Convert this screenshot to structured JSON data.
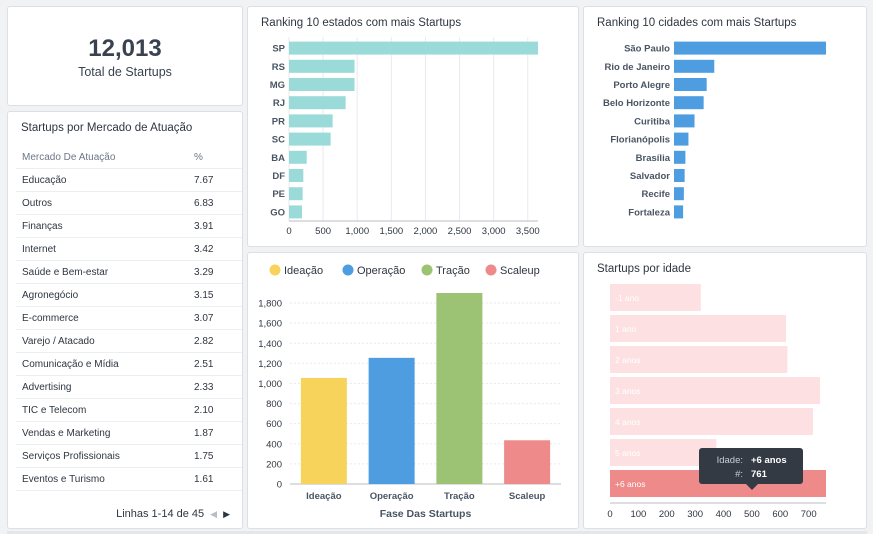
{
  "kpi": {
    "value": "12,013",
    "label": "Total de Startups"
  },
  "mercado": {
    "title": "Startups por Mercado de Atuação",
    "col1": "Mercado De Atuação",
    "col2": "%",
    "rows": [
      {
        "name": "Educação",
        "pct": "7.67"
      },
      {
        "name": "Outros",
        "pct": "6.83"
      },
      {
        "name": "Finanças",
        "pct": "3.91"
      },
      {
        "name": "Internet",
        "pct": "3.42"
      },
      {
        "name": "Saúde e Bem-estar",
        "pct": "3.29"
      },
      {
        "name": "Agronegócio",
        "pct": "3.15"
      },
      {
        "name": "E-commerce",
        "pct": "3.07"
      },
      {
        "name": "Varejo / Atacado",
        "pct": "2.82"
      },
      {
        "name": "Comunicação e Mídia",
        "pct": "2.51"
      },
      {
        "name": "Advertising",
        "pct": "2.33"
      },
      {
        "name": "TIC e Telecom",
        "pct": "2.10"
      },
      {
        "name": "Vendas e Marketing",
        "pct": "1.87"
      },
      {
        "name": "Serviços Profissionais",
        "pct": "1.75"
      },
      {
        "name": "Eventos e Turismo",
        "pct": "1.61"
      }
    ],
    "pager_text": "Linhas 1-14 de 45",
    "prev_icon": "chevron-left-icon",
    "next_icon": "chevron-right-icon"
  },
  "chart_data": [
    {
      "type": "bar",
      "orientation": "horizontal",
      "title": "Ranking 10 estados com mais Startups",
      "categories": [
        "SP",
        "RS",
        "MG",
        "RJ",
        "PR",
        "SC",
        "BA",
        "DF",
        "PE",
        "GO"
      ],
      "values": [
        3650,
        960,
        960,
        830,
        640,
        610,
        260,
        210,
        200,
        190
      ],
      "xlim": [
        0,
        3650
      ],
      "xticks": [
        0,
        500,
        1000,
        1500,
        2000,
        2500,
        3000,
        3500
      ],
      "xtick_labels": [
        "0",
        "500",
        "1,000",
        "1,500",
        "2,000",
        "2,500",
        "3,000",
        "3,500"
      ],
      "color": "#9adbd9",
      "grid": true
    },
    {
      "type": "bar",
      "orientation": "horizontal",
      "title": "Ranking 10 cidades com mais Startups",
      "categories": [
        "São Paulo",
        "Rio de Janeiro",
        "Porto Alegre",
        "Belo Horizonte",
        "Curitiba",
        "Florianópolis",
        "Brasília",
        "Salvador",
        "Recife",
        "Fortaleza"
      ],
      "values": [
        2000,
        530,
        430,
        390,
        270,
        190,
        150,
        140,
        130,
        120
      ],
      "xlim": [
        0,
        2000
      ],
      "color": "#4e9de0",
      "grid": false
    },
    {
      "type": "bar",
      "title": "",
      "categories": [
        "Ideação",
        "Operação",
        "Tração",
        "Scaleup"
      ],
      "series": [
        {
          "name": "Ideação",
          "color": "#f7d35c"
        },
        {
          "name": "Operação",
          "color": "#4e9de0"
        },
        {
          "name": "Tração",
          "color": "#9cc274"
        },
        {
          "name": "Scaleup",
          "color": "#ee8a89"
        }
      ],
      "values": [
        1055,
        1255,
        1900,
        435
      ],
      "colors": [
        "#f7d35c",
        "#4e9de0",
        "#9cc274",
        "#ee8a89"
      ],
      "xlabel": "Fase Das Startups",
      "ylim": [
        0,
        1900
      ],
      "yticks": [
        0,
        200,
        400,
        600,
        800,
        1000,
        1200,
        1400,
        1600,
        1800
      ],
      "ytick_labels": [
        "0",
        "200",
        "400",
        "600",
        "800",
        "1,000",
        "1,200",
        "1,400",
        "1,600",
        "1,800"
      ],
      "legend": "top",
      "grid": true
    },
    {
      "type": "bar",
      "orientation": "horizontal",
      "title": "Startups por idade",
      "categories": [
        "-1 ano",
        "1 ano",
        "2 anos",
        "3 anos",
        "4 anos",
        "5 anos",
        "+6 anos"
      ],
      "values": [
        320,
        620,
        625,
        740,
        715,
        375,
        761
      ],
      "xlim": [
        0,
        761
      ],
      "xticks": [
        0,
        100,
        200,
        300,
        400,
        500,
        600,
        700
      ],
      "xtick_labels": [
        "0",
        "100",
        "200",
        "300",
        "400",
        "500",
        "600",
        "700"
      ],
      "color": "#fde0e2",
      "highlight_color": "#ee8a89",
      "highlight_index": 6,
      "tooltip": {
        "label1": "Idade:",
        "value1": "+6 anos",
        "label2": "#:",
        "value2": "761"
      }
    }
  ]
}
